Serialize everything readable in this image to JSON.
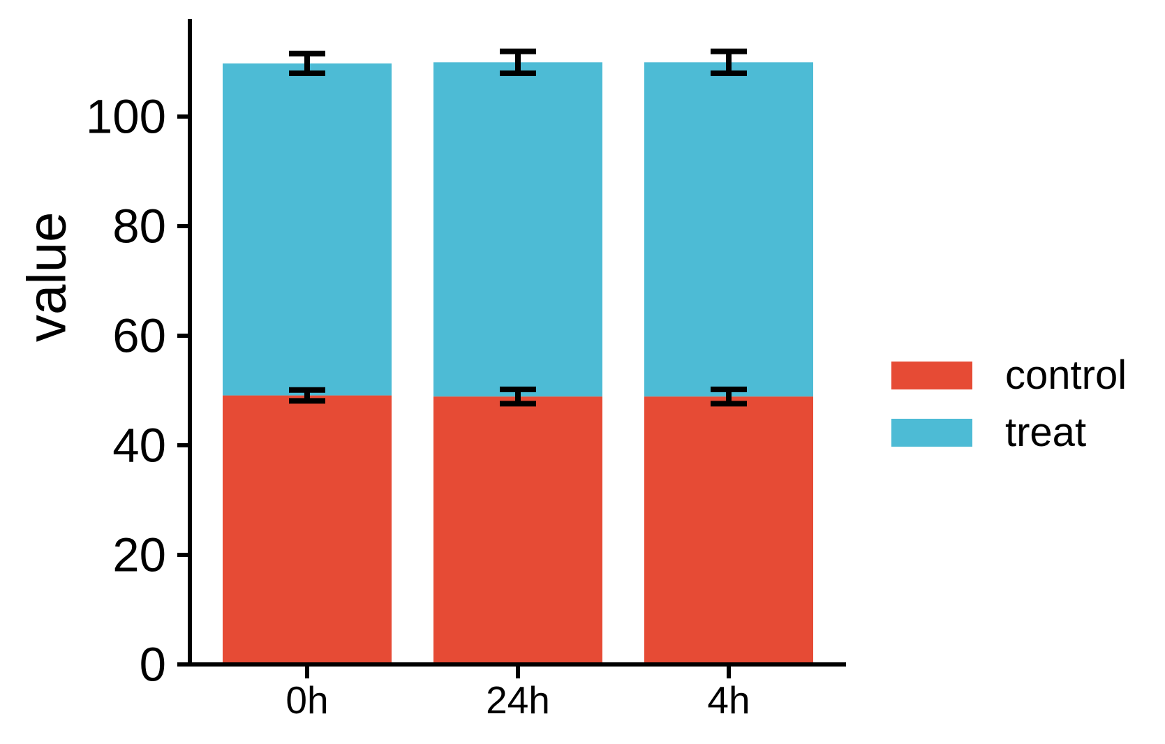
{
  "chart_data": {
    "type": "bar",
    "stacked": true,
    "orientation": "vertical",
    "ylabel": "value",
    "categories": [
      "0h",
      "24h",
      "4h"
    ],
    "series": [
      {
        "name": "control",
        "color": "#E64B35",
        "values": [
          49.1,
          48.9,
          48.9
        ],
        "errors": [
          1.0,
          1.3,
          1.3
        ]
      },
      {
        "name": "treat",
        "color": "#4DBBD5",
        "values": [
          60.6,
          61.0,
          61.0
        ],
        "errors": [
          1.8,
          2.0,
          2.0
        ]
      }
    ],
    "stack_totals": [
      109.7,
      109.9,
      109.9
    ],
    "yticks": [
      0,
      20,
      40,
      60,
      80,
      100
    ],
    "ylim": [
      0,
      117.8
    ],
    "grid": "off",
    "legend_position": "right",
    "error_bar_color": "#000000",
    "axis_color": "#000000",
    "background_color": "#FFFFFF"
  }
}
